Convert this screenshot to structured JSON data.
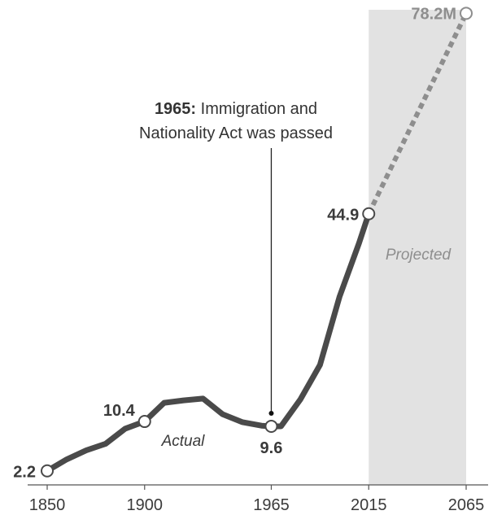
{
  "chart_data": {
    "type": "line",
    "x_ticks": [
      "1850",
      "1900",
      "1965",
      "2015",
      "2065"
    ],
    "xlim": [
      1850,
      2065
    ],
    "ylim": [
      0,
      80
    ],
    "series": [
      {
        "name": "Actual",
        "style": "solid",
        "x": [
          1850,
          1860,
          1870,
          1880,
          1890,
          1900,
          1910,
          1920,
          1930,
          1940,
          1950,
          1960,
          1965,
          1970,
          1980,
          1990,
          2000,
          2010,
          2015
        ],
        "y": [
          2.2,
          4.1,
          5.6,
          6.7,
          9.2,
          10.4,
          13.5,
          13.9,
          14.2,
          11.6,
          10.3,
          9.7,
          9.6,
          9.6,
          14.1,
          19.8,
          31.1,
          40.0,
          44.9
        ]
      },
      {
        "name": "Projected",
        "style": "dotted",
        "x": [
          2015,
          2065
        ],
        "y": [
          44.9,
          78.2
        ]
      }
    ],
    "highlight_points": [
      {
        "x": 1850,
        "y": 2.2,
        "label": "2.2"
      },
      {
        "x": 1900,
        "y": 10.4,
        "label": "10.4"
      },
      {
        "x": 1965,
        "y": 9.6,
        "label": "9.6"
      },
      {
        "x": 2015,
        "y": 44.9,
        "label": "44.9"
      },
      {
        "x": 2065,
        "y": 78.2,
        "label": "78.2M"
      }
    ],
    "projection_shading": {
      "from": 2015,
      "to": 2065
    },
    "labels": {
      "actual": "Actual",
      "projected": "Projected"
    },
    "annotation": {
      "x": 1965,
      "bold": "1965:",
      "line1_rest": " Immigration and",
      "line2": "Nationality Act was passed"
    },
    "colors": {
      "line": "#4a4a4a",
      "projected_line": "#8e8e8e",
      "shade": "#e2e2e2",
      "axis": "#555555"
    }
  }
}
